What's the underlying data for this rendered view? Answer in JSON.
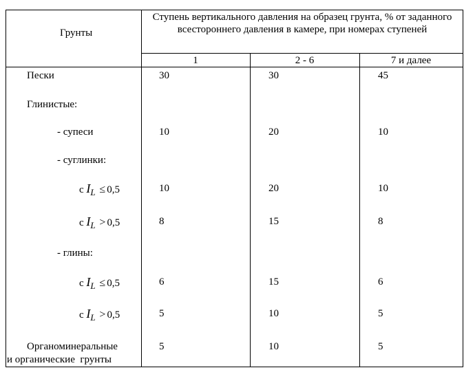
{
  "header": {
    "soil_col": "Грунты",
    "stage_title": "Ступень вертикального давления на образец грунта, % от заданного всестороннего давления в камере, при номерах ступеней",
    "stage_numbers": [
      "1",
      "2 - 6",
      "7 и далее"
    ]
  },
  "rows": [
    {
      "label": "Пески",
      "v1": "30",
      "v2": "30",
      "v3": "45"
    },
    {
      "label": "Глинистые:",
      "v1": "",
      "v2": "",
      "v3": ""
    },
    {
      "label": "- супеси",
      "v1": "10",
      "v2": "20",
      "v3": "10"
    },
    {
      "label": "- суглинки:",
      "v1": "",
      "v2": "",
      "v3": ""
    },
    {
      "prefix": "с",
      "var": "I",
      "sub": "L",
      "rel": "≤",
      "num": "0,5",
      "v1": "10",
      "v2": "20",
      "v3": "10"
    },
    {
      "prefix": "с",
      "var": "I",
      "sub": "L",
      "rel": ">",
      "num": "0,5",
      "v1": "8",
      "v2": "15",
      "v3": "8"
    },
    {
      "label": "- глины:",
      "v1": "",
      "v2": "",
      "v3": ""
    },
    {
      "prefix": "с",
      "var": "I",
      "sub": "L",
      "rel": "≤",
      "num": "0,5",
      "v1": "6",
      "v2": "15",
      "v3": "6"
    },
    {
      "prefix": "с",
      "var": "I",
      "sub": "L",
      "rel": ">",
      "num": "0,5",
      "v1": "5",
      "v2": "10",
      "v3": "5"
    },
    {
      "label": "Органоминеральные",
      "label2": "и органические  грунты",
      "v1": "5",
      "v2": "10",
      "v3": "5"
    }
  ]
}
